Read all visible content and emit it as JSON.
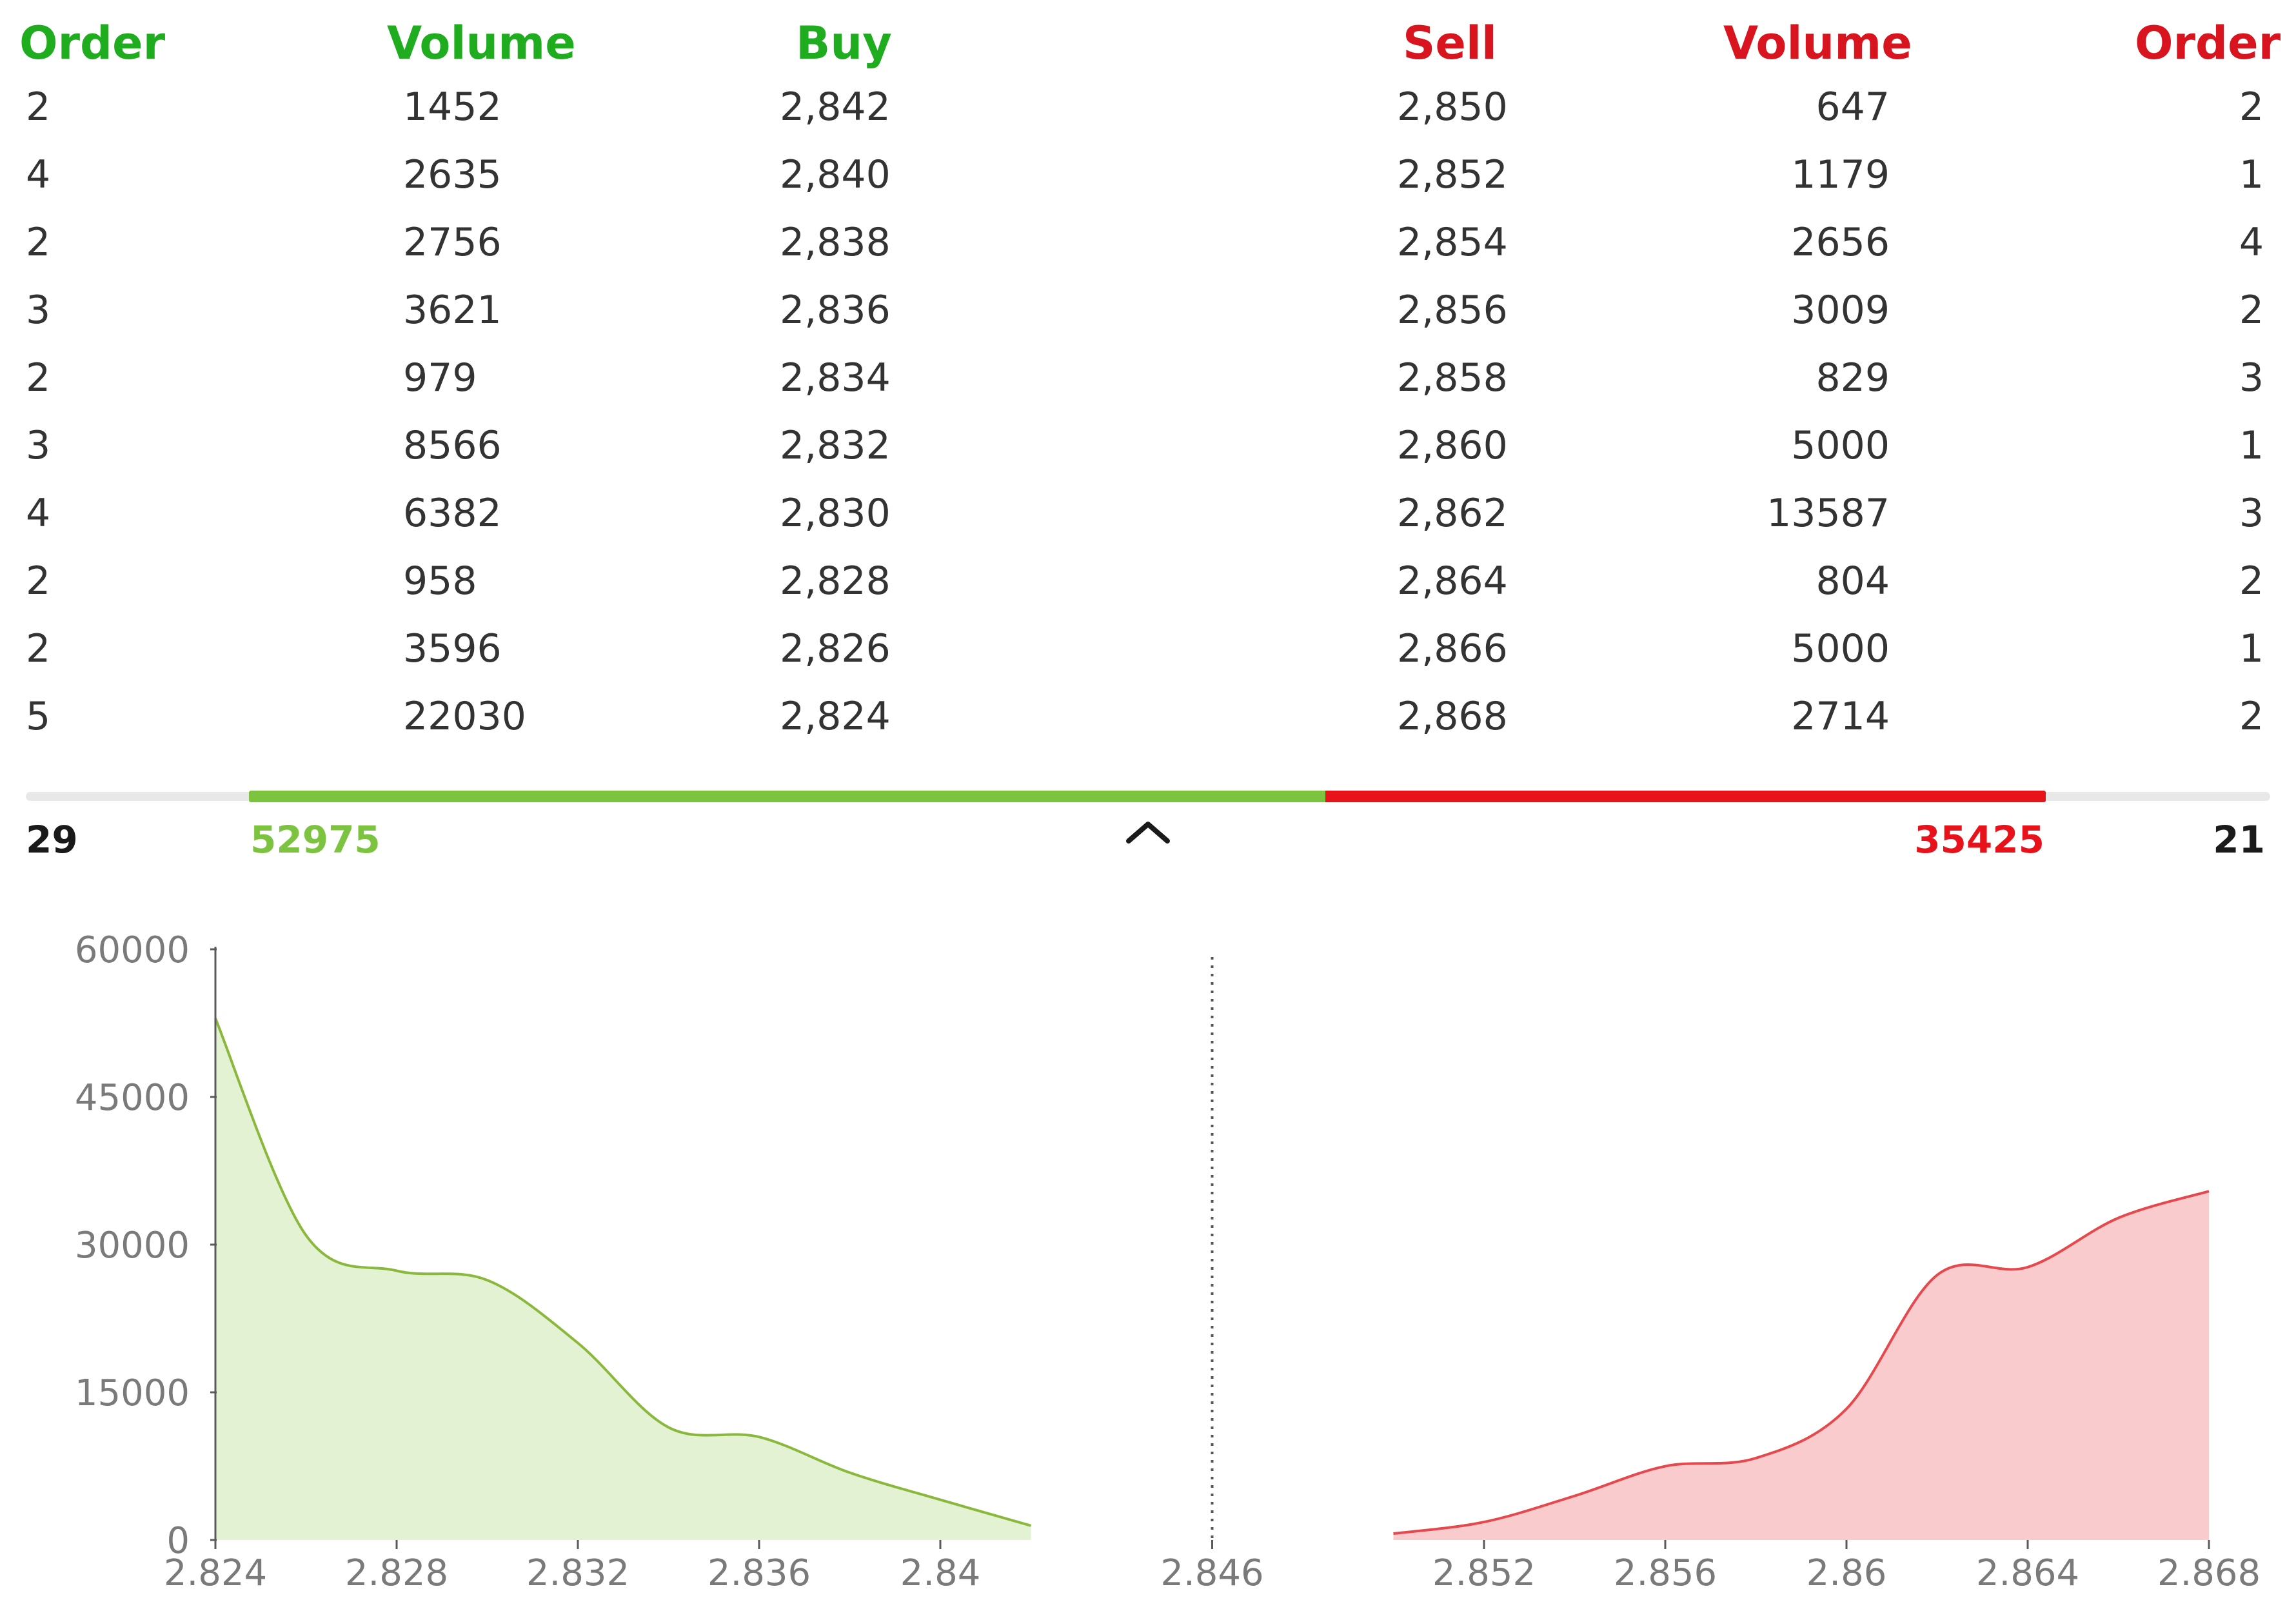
{
  "headers": {
    "buy_order": "Order",
    "buy_volume": "Volume",
    "buy_price": "Buy",
    "sell_price": "Sell",
    "sell_volume": "Volume",
    "sell_order": "Order"
  },
  "rows": [
    {
      "buy_order": "2",
      "buy_volume": "1452",
      "buy_price": "2,842",
      "sell_price": "2,850",
      "sell_volume": "647",
      "sell_order": "2"
    },
    {
      "buy_order": "4",
      "buy_volume": "2635",
      "buy_price": "2,840",
      "sell_price": "2,852",
      "sell_volume": "1179",
      "sell_order": "1"
    },
    {
      "buy_order": "2",
      "buy_volume": "2756",
      "buy_price": "2,838",
      "sell_price": "2,854",
      "sell_volume": "2656",
      "sell_order": "4"
    },
    {
      "buy_order": "3",
      "buy_volume": "3621",
      "buy_price": "2,836",
      "sell_price": "2,856",
      "sell_volume": "3009",
      "sell_order": "2"
    },
    {
      "buy_order": "2",
      "buy_volume": "979",
      "buy_price": "2,834",
      "sell_price": "2,858",
      "sell_volume": "829",
      "sell_order": "3"
    },
    {
      "buy_order": "3",
      "buy_volume": "8566",
      "buy_price": "2,832",
      "sell_price": "2,860",
      "sell_volume": "5000",
      "sell_order": "1"
    },
    {
      "buy_order": "4",
      "buy_volume": "6382",
      "buy_price": "2,830",
      "sell_price": "2,862",
      "sell_volume": "13587",
      "sell_order": "3"
    },
    {
      "buy_order": "2",
      "buy_volume": "958",
      "buy_price": "2,828",
      "sell_price": "2,864",
      "sell_volume": "804",
      "sell_order": "2"
    },
    {
      "buy_order": "2",
      "buy_volume": "3596",
      "buy_price": "2,826",
      "sell_price": "2,866",
      "sell_volume": "5000",
      "sell_order": "1"
    },
    {
      "buy_order": "5",
      "buy_volume": "22030",
      "buy_price": "2,824",
      "sell_price": "2,868",
      "sell_volume": "2714",
      "sell_order": "2"
    }
  ],
  "totals": {
    "buy_orders": "29",
    "buy_volume": "52975",
    "sell_volume": "35425",
    "sell_orders": "21",
    "buy_ratio": 0.599
  },
  "icons": {
    "toggle": "chevron-up-icon"
  },
  "colors": {
    "buy_header": "#1fad1f",
    "sell_header": "#d8141f",
    "buy_line": "#8ab83c",
    "buy_fill": "#e3f2d3",
    "sell_line": "#e5484d",
    "sell_fill": "#f9cbcc",
    "buy_bar": "#7cc440",
    "sell_bar": "#e8131a"
  },
  "chart_data": {
    "type": "area",
    "title": "",
    "xlabel": "",
    "ylabel": "",
    "xlim": [
      2.824,
      2.868
    ],
    "ylim": [
      0,
      60000
    ],
    "xticks": [
      "2.824",
      "2.828",
      "2.832",
      "2.836",
      "2.84",
      "2.846",
      "2.852",
      "2.856",
      "2.86",
      "2.864",
      "2.868"
    ],
    "yticks": [
      "0",
      "15000",
      "30000",
      "45000",
      "60000"
    ],
    "divider_x": 2.846,
    "grid": false,
    "legend": "none",
    "series": [
      {
        "side": "buy",
        "x": [
          2.824,
          2.826,
          2.828,
          2.83,
          2.832,
          2.834,
          2.836,
          2.838,
          2.84,
          2.842
        ],
        "y": [
          52975,
          30945,
          27349,
          26391,
          20009,
          11443,
          10464,
          6843,
          4087,
          1452
        ]
      },
      {
        "side": "sell",
        "x": [
          2.85,
          2.852,
          2.854,
          2.856,
          2.858,
          2.86,
          2.862,
          2.864,
          2.866,
          2.868
        ],
        "y": [
          647,
          1826,
          4482,
          7491,
          8320,
          13320,
          26907,
          27711,
          32711,
          35425
        ]
      }
    ]
  }
}
